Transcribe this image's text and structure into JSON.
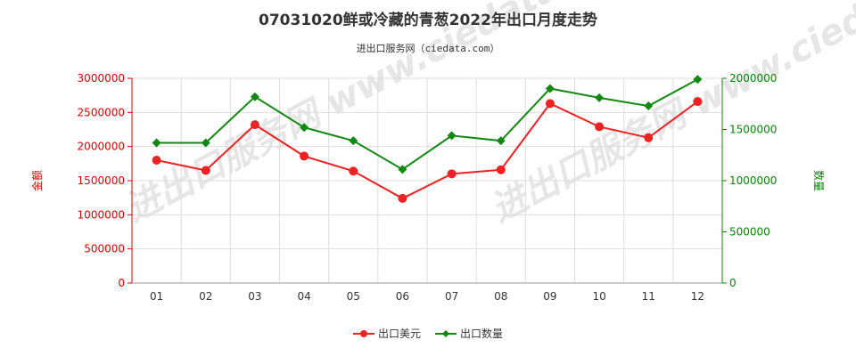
{
  "chart_data": {
    "type": "line",
    "title": "07031020鲜或冷藏的青葱2022年出口月度走势",
    "subtitle": "进出口服务网（ciedata.com）",
    "watermark": "进出口服务网 www.ciedata.com",
    "categories": [
      "01",
      "02",
      "03",
      "04",
      "05",
      "06",
      "07",
      "08",
      "09",
      "10",
      "11",
      "12"
    ],
    "y_left": {
      "label": "金额",
      "range": [
        0,
        3000000
      ],
      "ticks": [
        "0",
        "500000",
        "1000000",
        "1500000",
        "2000000",
        "2500000",
        "3000000"
      ],
      "color": "#dd0000"
    },
    "y_right": {
      "label": "数量",
      "range": [
        0,
        2000000
      ],
      "ticks": [
        "0",
        "500000",
        "1000000",
        "1500000",
        "2000000"
      ],
      "color": "#008800"
    },
    "series": [
      {
        "name": "出口美元",
        "axis": "left",
        "color": "#ee2222",
        "marker": "circle",
        "values": [
          1800000,
          1650000,
          2320000,
          1860000,
          1640000,
          1240000,
          1600000,
          1660000,
          2630000,
          2290000,
          2130000,
          2660000
        ]
      },
      {
        "name": "出口数量",
        "axis": "right",
        "color": "#118811",
        "marker": "diamond",
        "values": [
          1370000,
          1370000,
          1820000,
          1520000,
          1390000,
          1110000,
          1440000,
          1390000,
          1900000,
          1810000,
          1730000,
          1990000
        ]
      }
    ],
    "grid": true,
    "legend_position": "bottom"
  }
}
